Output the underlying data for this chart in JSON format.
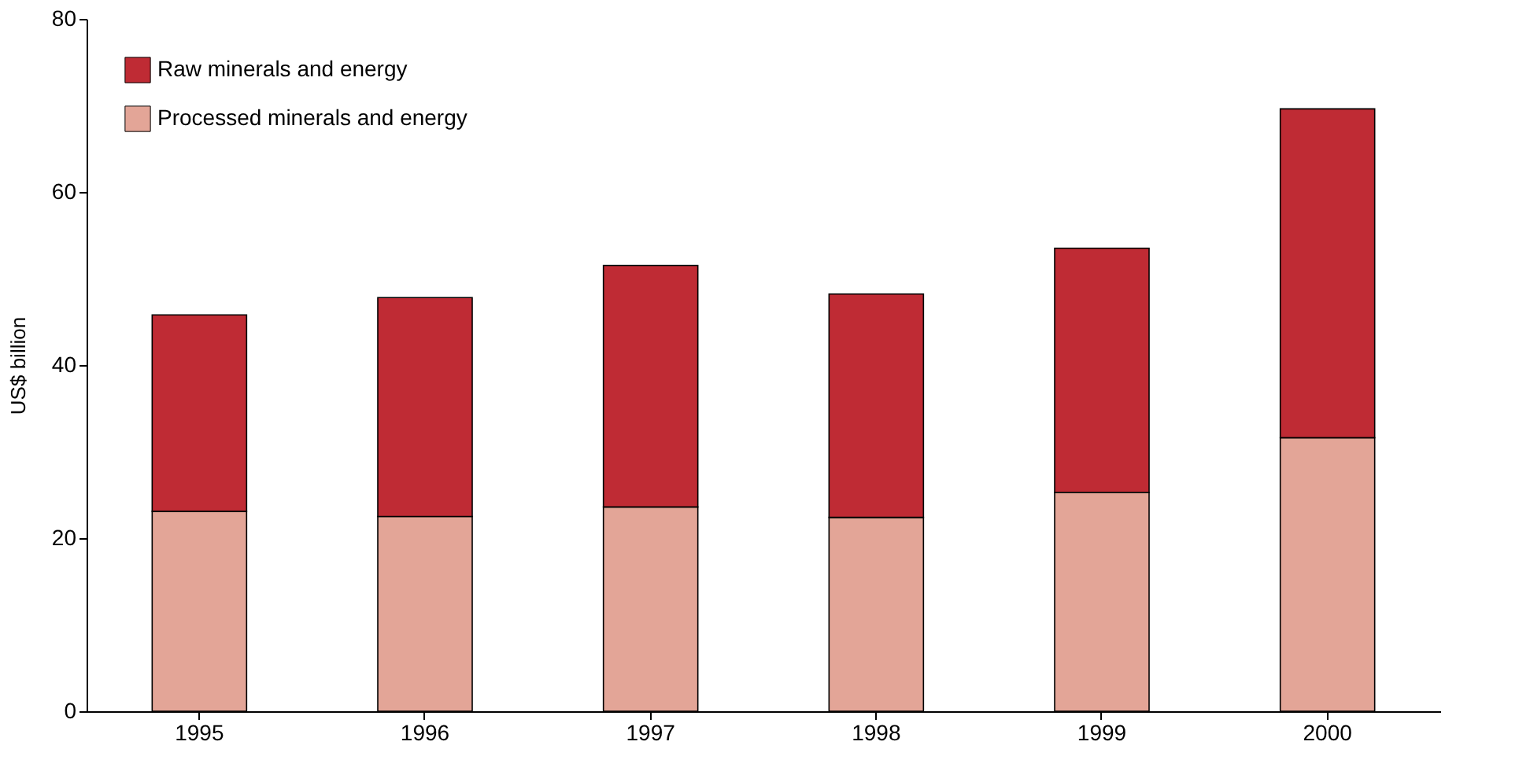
{
  "chart_data": {
    "type": "bar",
    "stacked": true,
    "ylabel": "US$ billion",
    "categories": [
      "1995",
      "1996",
      "1997",
      "1998",
      "1999",
      "2000"
    ],
    "series": [
      {
        "name": "Processed minerals and energy",
        "color": "#e3a597",
        "values": [
          23.1,
          22.5,
          23.6,
          22.4,
          25.3,
          31.6
        ]
      },
      {
        "name": "Raw minerals and energy",
        "color": "#bf2b34",
        "values": [
          22.7,
          25.3,
          27.9,
          25.8,
          28.2,
          38.0
        ]
      }
    ],
    "ylim": [
      0,
      80
    ],
    "yticks": [
      0,
      20,
      40,
      60,
      80
    ],
    "grid": false,
    "legend": "top left"
  }
}
